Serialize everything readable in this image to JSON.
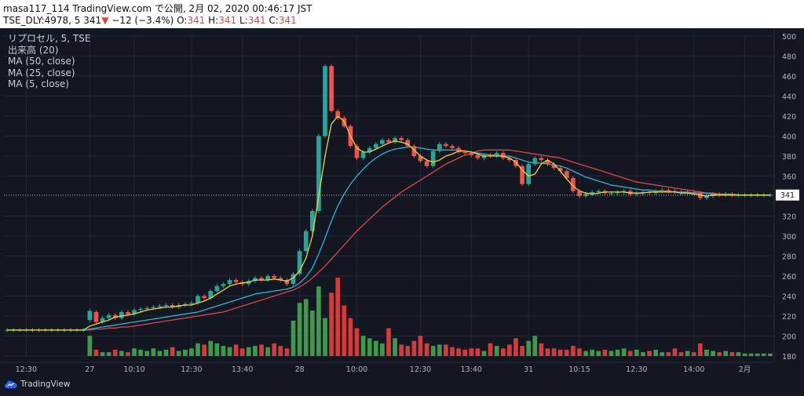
{
  "header": {
    "line1": "masa117_114 TradingView.com で公開, 2月 02, 2020 00:46:17 JST",
    "symbol": "TSE_DLY:4978, 5",
    "last": "341",
    "arrow": "▼",
    "change": "−12 (−3.4%)",
    "o_label": "O:",
    "o_val": "341",
    "h_label": "H:",
    "h_val": "341",
    "l_label": "L:",
    "l_val": "341",
    "c_label": "C:",
    "c_val": "341"
  },
  "legend": {
    "title": "リプロセル, 5, TSE",
    "volume": "出来高 (20)",
    "ma50": "MA (50, close)",
    "ma25": "MA (25, close)",
    "ma5": "MA (5, close)"
  },
  "footer": {
    "brand": "TradingView"
  },
  "colors": {
    "background": "#131722",
    "grid": "#242733",
    "axis_text": "#b2b5be",
    "up": "#26a69a",
    "down": "#ef5350",
    "vol_up": "#3e9a4a",
    "vol_down": "#d63b3b",
    "ma5": "#f5d22a",
    "ma25": "#2cb4d6",
    "ma50": "#e04545",
    "last_label_bg": "#ffffff"
  },
  "chart_data": {
    "type": "candlestick",
    "ylim": [
      180,
      500
    ],
    "y_ticks": [
      180,
      200,
      220,
      240,
      260,
      280,
      300,
      320,
      340,
      360,
      380,
      400,
      420,
      440,
      460,
      480,
      500
    ],
    "x_ticks": [
      {
        "i": 3,
        "label": "12:30"
      },
      {
        "i": 13,
        "label": "27"
      },
      {
        "i": 20,
        "label": "10:10"
      },
      {
        "i": 29,
        "label": "12:30"
      },
      {
        "i": 37,
        "label": "13:40"
      },
      {
        "i": 46,
        "label": "28"
      },
      {
        "i": 55,
        "label": "10:00"
      },
      {
        "i": 65,
        "label": "12:30"
      },
      {
        "i": 73,
        "label": "13:40"
      },
      {
        "i": 82,
        "label": "31"
      },
      {
        "i": 90,
        "label": "10:15"
      },
      {
        "i": 99,
        "label": "12:30"
      },
      {
        "i": 108,
        "label": "14:00"
      },
      {
        "i": 116,
        "label": "2月"
      }
    ],
    "last_price": 341,
    "last_price_label": "341",
    "x_count": 121,
    "close": [
      206,
      206,
      206,
      206,
      206,
      206,
      206,
      206,
      206,
      206,
      206,
      206,
      206,
      225,
      214,
      218,
      221,
      218,
      224,
      222,
      226,
      227,
      228,
      229,
      230,
      231,
      229,
      231,
      232,
      233,
      240,
      238,
      245,
      250,
      252,
      256,
      254,
      252,
      255,
      258,
      256,
      260,
      258,
      256,
      252,
      262,
      285,
      305,
      325,
      400,
      470,
      425,
      418,
      410,
      390,
      378,
      384,
      388,
      392,
      396,
      394,
      398,
      396,
      390,
      380,
      375,
      370,
      385,
      392,
      390,
      388,
      384,
      383,
      381,
      378,
      381,
      380,
      383,
      378,
      376,
      370,
      352,
      372,
      378,
      376,
      372,
      368,
      365,
      358,
      345,
      340,
      342,
      344,
      345,
      343,
      343,
      344,
      345,
      342,
      343,
      344,
      343,
      345,
      346,
      345,
      344,
      343,
      344,
      343,
      338,
      340,
      342,
      341,
      342,
      341,
      341,
      341,
      341,
      341,
      341,
      341
    ],
    "open": [
      206,
      206,
      206,
      206,
      206,
      206,
      206,
      206,
      206,
      206,
      206,
      206,
      206,
      216,
      224,
      214,
      218,
      221,
      218,
      224,
      222,
      226,
      227,
      228,
      229,
      230,
      231,
      229,
      231,
      232,
      233,
      240,
      238,
      245,
      250,
      252,
      256,
      254,
      252,
      255,
      258,
      256,
      260,
      258,
      256,
      252,
      262,
      285,
      305,
      325,
      400,
      470,
      425,
      418,
      410,
      390,
      378,
      384,
      388,
      392,
      396,
      394,
      398,
      396,
      390,
      380,
      375,
      370,
      385,
      392,
      390,
      388,
      384,
      383,
      381,
      378,
      381,
      380,
      383,
      378,
      376,
      370,
      352,
      372,
      378,
      376,
      372,
      368,
      365,
      358,
      345,
      340,
      342,
      344,
      345,
      343,
      343,
      344,
      345,
      342,
      343,
      344,
      343,
      345,
      346,
      345,
      344,
      343,
      344,
      343,
      338,
      340,
      342,
      341,
      342,
      341,
      341,
      341,
      341,
      341,
      341
    ],
    "volume": [
      0,
      0,
      0,
      0,
      0,
      0,
      0,
      0,
      0,
      0,
      0,
      0,
      0,
      16,
      5,
      3,
      3,
      5,
      4,
      3,
      6,
      5,
      4,
      6,
      4,
      5,
      7,
      4,
      5,
      6,
      10,
      9,
      12,
      10,
      8,
      7,
      9,
      6,
      7,
      8,
      9,
      7,
      10,
      8,
      6,
      28,
      42,
      45,
      36,
      55,
      30,
      50,
      62,
      40,
      30,
      22,
      16,
      14,
      12,
      10,
      22,
      14,
      9,
      8,
      12,
      16,
      10,
      8,
      9,
      9,
      7,
      6,
      5,
      6,
      6,
      4,
      10,
      8,
      6,
      9,
      14,
      8,
      12,
      16,
      10,
      6,
      6,
      5,
      5,
      8,
      6,
      4,
      5,
      4,
      5,
      4,
      5,
      6,
      4,
      5,
      3,
      4,
      5,
      3,
      3,
      6,
      3,
      4,
      3,
      10,
      5,
      4,
      3,
      4,
      3,
      3,
      2,
      2,
      2,
      2,
      2
    ],
    "ma5": [
      206,
      206,
      206,
      206,
      206,
      206,
      206,
      206,
      206,
      206,
      206,
      206,
      206,
      210,
      212,
      214,
      216,
      219,
      220,
      221,
      222,
      224,
      226,
      227,
      228,
      229,
      229,
      230,
      231,
      231,
      233,
      235,
      238,
      242,
      246,
      250,
      252,
      253,
      254,
      256,
      256,
      256,
      257,
      256,
      255,
      258,
      265,
      278,
      300,
      340,
      380,
      412,
      420,
      415,
      400,
      388,
      384,
      384,
      387,
      390,
      393,
      395,
      394,
      392,
      386,
      380,
      376,
      374,
      376,
      380,
      382,
      385,
      385,
      384,
      382,
      380,
      380,
      380,
      380,
      378,
      374,
      366,
      360,
      362,
      372,
      376,
      372,
      365,
      357,
      350,
      345,
      343,
      342,
      343,
      344,
      344,
      344,
      344,
      343,
      343,
      343,
      344,
      344,
      344,
      344,
      344,
      343,
      343,
      342,
      341,
      340,
      341,
      341,
      341,
      341,
      341,
      341,
      341,
      341,
      341,
      341
    ],
    "ma25": [
      206,
      206,
      206,
      206,
      206,
      206,
      206,
      206,
      206,
      206,
      206,
      206,
      206,
      207,
      208,
      209,
      210,
      211,
      212,
      213,
      214,
      215,
      216,
      217,
      218,
      219,
      220,
      221,
      222,
      223,
      224,
      226,
      228,
      230,
      232,
      234,
      236,
      238,
      240,
      242,
      243,
      244,
      245,
      246,
      247,
      249,
      253,
      259,
      268,
      282,
      298,
      315,
      330,
      342,
      352,
      360,
      367,
      373,
      378,
      382,
      385,
      387,
      388,
      389,
      389,
      388,
      387,
      386,
      386,
      386,
      386,
      386,
      385,
      384,
      383,
      382,
      381,
      381,
      380,
      380,
      378,
      376,
      374,
      373,
      373,
      372,
      371,
      370,
      368,
      365,
      362,
      359,
      357,
      355,
      353,
      351,
      350,
      349,
      348,
      347,
      346,
      346,
      345,
      345,
      345,
      344,
      344,
      344,
      343,
      343,
      343,
      342,
      342,
      342,
      342,
      341,
      341,
      341,
      341,
      341,
      341
    ],
    "ma50": [
      206,
      206,
      206,
      206,
      206,
      206,
      206,
      206,
      206,
      206,
      206,
      206,
      206,
      206,
      207,
      207,
      208,
      208,
      209,
      209,
      210,
      211,
      212,
      213,
      214,
      215,
      216,
      217,
      218,
      219,
      220,
      221,
      222,
      223,
      224,
      226,
      228,
      230,
      232,
      234,
      236,
      238,
      240,
      242,
      244,
      246,
      249,
      253,
      258,
      264,
      270,
      277,
      284,
      291,
      298,
      305,
      311,
      317,
      323,
      329,
      334,
      339,
      344,
      348,
      352,
      356,
      360,
      364,
      368,
      372,
      375,
      378,
      381,
      383,
      385,
      386,
      386,
      386,
      386,
      386,
      385,
      384,
      383,
      382,
      381,
      380,
      379,
      378,
      376,
      374,
      372,
      370,
      368,
      366,
      364,
      362,
      360,
      358,
      356,
      354,
      353,
      352,
      351,
      350,
      349,
      348,
      347,
      346,
      345,
      344,
      343,
      343,
      342,
      342,
      341,
      341,
      341,
      341,
      341,
      341,
      341
    ]
  }
}
